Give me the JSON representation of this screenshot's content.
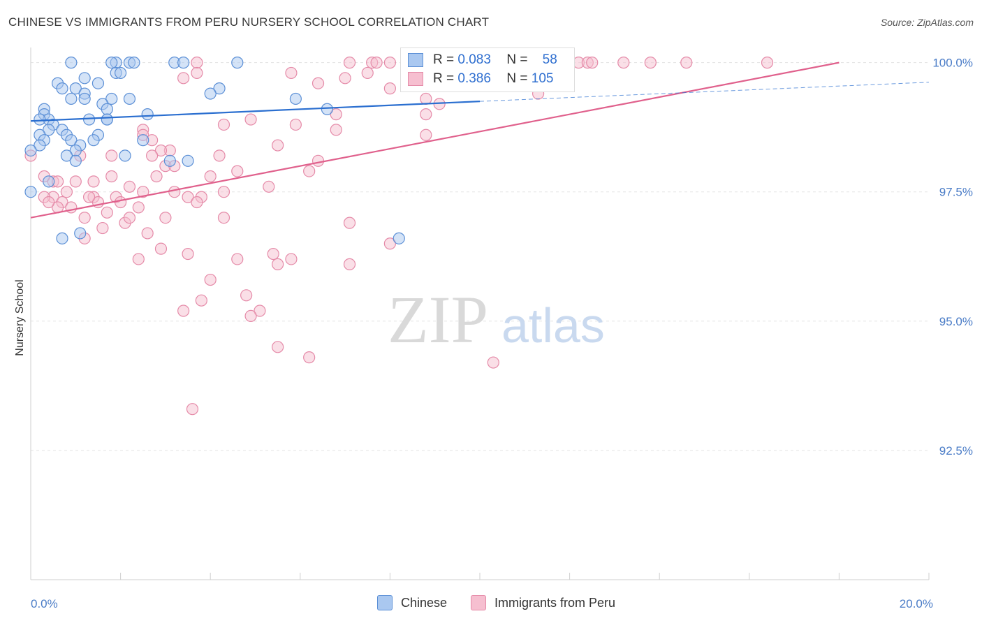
{
  "title": "CHINESE VS IMMIGRANTS FROM PERU NURSERY SCHOOL CORRELATION CHART",
  "source": "Source: ZipAtlas.com",
  "watermark": {
    "zip": "ZIP",
    "atlas": "atlas"
  },
  "legend": {
    "rows": [
      {
        "r_label": "R =",
        "r_value": "0.083",
        "n_label": "N =",
        "n_value": "58"
      },
      {
        "r_label": "R =",
        "r_value": "0.386",
        "n_label": "N =",
        "n_value": "105"
      }
    ]
  },
  "bottom_legend": {
    "series1": "Chinese",
    "series2": "Immigrants from Peru"
  },
  "colors": {
    "chinese_fill": "#aac8f0",
    "chinese_stroke": "#5b8fd6",
    "chinese_line": "#2b6fd0",
    "peru_fill": "#f6bfd0",
    "peru_stroke": "#e58aa8",
    "peru_line": "#e0608c",
    "grid": "#e3e3e3",
    "tick_text": "#4a7cc7"
  },
  "chart_data": {
    "type": "scatter",
    "title": "CHINESE VS IMMIGRANTS FROM PERU NURSERY SCHOOL CORRELATION CHART",
    "xlabel": "",
    "ylabel": "Nursery School",
    "xlim": [
      0,
      20
    ],
    "ylim": [
      90.0,
      100.4
    ],
    "x_ticks": [
      0,
      2,
      4,
      6,
      8,
      10,
      12,
      14,
      16,
      18,
      20
    ],
    "x_tick_labels": {
      "0": "0.0%",
      "20": "20.0%"
    },
    "y_ticks": [
      92.5,
      95.0,
      97.5,
      100.0
    ],
    "y_tick_labels": [
      "92.5%",
      "95.0%",
      "97.5%",
      "100.0%"
    ],
    "grid": true,
    "legend_position": "top-center",
    "series": [
      {
        "name": "Chinese",
        "R": 0.083,
        "N": 58,
        "trend": {
          "x": [
            0,
            10
          ],
          "y": [
            98.87,
            99.25
          ]
        },
        "trend_dashed": {
          "x": [
            10,
            20
          ],
          "y": [
            99.25,
            99.62
          ]
        },
        "points": [
          [
            0.9,
            100.0
          ],
          [
            1.9,
            100.0
          ],
          [
            1.8,
            100.0
          ],
          [
            2.2,
            100.0
          ],
          [
            2.3,
            100.0
          ],
          [
            3.2,
            100.0
          ],
          [
            3.4,
            100.0
          ],
          [
            4.6,
            100.0
          ],
          [
            1.9,
            99.8
          ],
          [
            2.0,
            99.8
          ],
          [
            1.2,
            99.7
          ],
          [
            0.6,
            99.6
          ],
          [
            0.7,
            99.5
          ],
          [
            1.0,
            99.5
          ],
          [
            1.2,
            99.4
          ],
          [
            1.2,
            99.3
          ],
          [
            4.2,
            99.5
          ],
          [
            5.9,
            99.3
          ],
          [
            4.0,
            99.4
          ],
          [
            1.8,
            99.3
          ],
          [
            1.6,
            99.2
          ],
          [
            2.2,
            99.3
          ],
          [
            0.9,
            99.3
          ],
          [
            0.3,
            99.1
          ],
          [
            1.7,
            99.1
          ],
          [
            6.6,
            99.1
          ],
          [
            2.6,
            99.0
          ],
          [
            0.3,
            99.0
          ],
          [
            1.7,
            98.9
          ],
          [
            1.7,
            98.9
          ],
          [
            0.4,
            98.9
          ],
          [
            0.5,
            98.8
          ],
          [
            1.3,
            98.9
          ],
          [
            0.7,
            98.7
          ],
          [
            0.4,
            98.7
          ],
          [
            0.8,
            98.6
          ],
          [
            1.5,
            98.6
          ],
          [
            1.4,
            98.5
          ],
          [
            0.9,
            98.5
          ],
          [
            0.2,
            98.6
          ],
          [
            0.3,
            98.5
          ],
          [
            2.5,
            98.5
          ],
          [
            1.1,
            98.4
          ],
          [
            0.2,
            98.4
          ],
          [
            1.0,
            98.3
          ],
          [
            0.0,
            98.3
          ],
          [
            0.8,
            98.2
          ],
          [
            3.1,
            98.1
          ],
          [
            3.5,
            98.1
          ],
          [
            1.0,
            98.1
          ],
          [
            2.1,
            98.2
          ],
          [
            0.4,
            97.7
          ],
          [
            0.0,
            97.5
          ],
          [
            1.1,
            96.7
          ],
          [
            0.7,
            96.6
          ],
          [
            8.2,
            96.6
          ],
          [
            0.2,
            98.9
          ],
          [
            1.5,
            99.6
          ]
        ]
      },
      {
        "name": "Immigrants from Peru",
        "R": 0.386,
        "N": 105,
        "trend": {
          "x": [
            0,
            18
          ],
          "y": [
            97.0,
            100.0
          ]
        },
        "points": [
          [
            3.7,
            100.0
          ],
          [
            7.1,
            100.0
          ],
          [
            7.6,
            100.0
          ],
          [
            7.7,
            100.0
          ],
          [
            8.0,
            100.0
          ],
          [
            9.2,
            100.0
          ],
          [
            10.5,
            100.0
          ],
          [
            12.2,
            100.0
          ],
          [
            12.4,
            100.0
          ],
          [
            12.5,
            100.0
          ],
          [
            13.2,
            100.0
          ],
          [
            13.8,
            100.0
          ],
          [
            14.6,
            100.0
          ],
          [
            16.4,
            100.0
          ],
          [
            3.7,
            99.8
          ],
          [
            5.8,
            99.8
          ],
          [
            7.5,
            99.8
          ],
          [
            3.4,
            99.7
          ],
          [
            7.0,
            99.7
          ],
          [
            6.4,
            99.6
          ],
          [
            8.0,
            99.5
          ],
          [
            11.3,
            99.4
          ],
          [
            8.8,
            99.3
          ],
          [
            9.1,
            99.2
          ],
          [
            8.8,
            99.0
          ],
          [
            6.8,
            99.0
          ],
          [
            4.9,
            98.9
          ],
          [
            5.9,
            98.8
          ],
          [
            4.3,
            98.8
          ],
          [
            2.5,
            98.7
          ],
          [
            6.8,
            98.7
          ],
          [
            2.5,
            98.6
          ],
          [
            8.8,
            98.6
          ],
          [
            5.5,
            98.4
          ],
          [
            3.1,
            98.3
          ],
          [
            2.9,
            98.3
          ],
          [
            4.2,
            98.2
          ],
          [
            1.8,
            98.2
          ],
          [
            2.7,
            98.2
          ],
          [
            6.4,
            98.1
          ],
          [
            1.1,
            98.2
          ],
          [
            3.0,
            98.0
          ],
          [
            3.2,
            98.0
          ],
          [
            4.6,
            97.9
          ],
          [
            4.0,
            97.8
          ],
          [
            2.8,
            97.8
          ],
          [
            1.8,
            97.8
          ],
          [
            1.0,
            97.7
          ],
          [
            0.5,
            97.7
          ],
          [
            1.4,
            97.7
          ],
          [
            2.2,
            97.6
          ],
          [
            3.2,
            97.5
          ],
          [
            4.3,
            97.5
          ],
          [
            5.3,
            97.6
          ],
          [
            2.5,
            97.5
          ],
          [
            1.9,
            97.4
          ],
          [
            1.4,
            97.4
          ],
          [
            0.8,
            97.5
          ],
          [
            0.5,
            97.4
          ],
          [
            0.3,
            97.4
          ],
          [
            1.5,
            97.3
          ],
          [
            2.0,
            97.3
          ],
          [
            3.5,
            97.4
          ],
          [
            3.8,
            97.4
          ],
          [
            0.7,
            97.3
          ],
          [
            2.4,
            97.2
          ],
          [
            1.7,
            97.1
          ],
          [
            0.6,
            97.2
          ],
          [
            3.0,
            97.0
          ],
          [
            4.3,
            97.0
          ],
          [
            1.2,
            97.0
          ],
          [
            7.1,
            96.9
          ],
          [
            2.1,
            96.9
          ],
          [
            1.6,
            96.8
          ],
          [
            2.6,
            96.7
          ],
          [
            1.2,
            96.6
          ],
          [
            2.9,
            96.4
          ],
          [
            3.5,
            96.3
          ],
          [
            5.4,
            96.3
          ],
          [
            4.6,
            96.2
          ],
          [
            2.4,
            96.2
          ],
          [
            5.5,
            96.1
          ],
          [
            7.1,
            96.1
          ],
          [
            5.8,
            96.2
          ],
          [
            8.0,
            96.5
          ],
          [
            4.0,
            95.8
          ],
          [
            4.8,
            95.5
          ],
          [
            3.8,
            95.4
          ],
          [
            5.1,
            95.2
          ],
          [
            3.4,
            95.2
          ],
          [
            4.9,
            95.1
          ],
          [
            5.5,
            94.5
          ],
          [
            6.2,
            94.3
          ],
          [
            10.3,
            94.2
          ],
          [
            3.6,
            93.3
          ],
          [
            0.0,
            98.2
          ],
          [
            0.3,
            97.8
          ],
          [
            0.4,
            97.3
          ],
          [
            1.3,
            97.4
          ],
          [
            0.6,
            97.7
          ],
          [
            0.9,
            97.2
          ],
          [
            2.2,
            97.0
          ],
          [
            3.7,
            97.3
          ],
          [
            6.2,
            97.9
          ],
          [
            2.7,
            98.5
          ]
        ]
      }
    ]
  }
}
